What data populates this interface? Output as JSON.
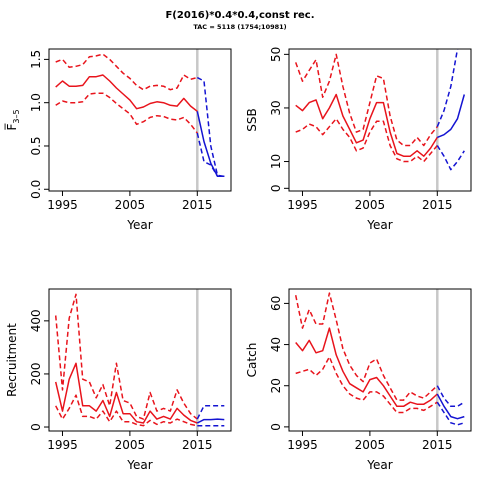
{
  "title": "F(2016)*0.4*0.4,const rec.",
  "subtitle": "TAC = 5118 (1754;10981)",
  "colors": {
    "historic": "#e8141c",
    "forecast": "#1414d2",
    "divider": "#c8c8c8"
  },
  "chart_data": [
    {
      "type": "line",
      "name": "fbar-panel",
      "xlabel": "Year",
      "ylabel": "F̅",
      "ylabel_sub": "3–5",
      "xlim": [
        1993,
        2020
      ],
      "ylim": [
        -0.02,
        1.62
      ],
      "xticks": [
        1995,
        2005,
        2015
      ],
      "yticks": [
        0.0,
        0.5,
        1.0,
        1.5
      ],
      "ytick_labels": [
        "0.0",
        "0.5",
        "1.0",
        "1.5"
      ],
      "divider_x": 2015,
      "historic": {
        "x": [
          1994,
          1995,
          1996,
          1997,
          1998,
          1999,
          2000,
          2001,
          2002,
          2003,
          2004,
          2005,
          2006,
          2007,
          2008,
          2009,
          2010,
          2011,
          2012,
          2013,
          2014,
          2015
        ],
        "mid": [
          1.18,
          1.25,
          1.19,
          1.19,
          1.2,
          1.3,
          1.3,
          1.32,
          1.25,
          1.17,
          1.1,
          1.03,
          0.93,
          0.95,
          0.99,
          1.01,
          1.0,
          0.97,
          0.96,
          1.05,
          0.96,
          0.9
        ],
        "low": [
          0.97,
          1.02,
          1.0,
          1.0,
          1.01,
          1.1,
          1.11,
          1.11,
          1.06,
          0.99,
          0.93,
          0.87,
          0.75,
          0.78,
          0.83,
          0.85,
          0.84,
          0.81,
          0.8,
          0.83,
          0.75,
          0.65
        ],
        "high": [
          1.47,
          1.5,
          1.41,
          1.42,
          1.44,
          1.53,
          1.54,
          1.56,
          1.5,
          1.42,
          1.34,
          1.28,
          1.2,
          1.15,
          1.19,
          1.2,
          1.19,
          1.15,
          1.17,
          1.32,
          1.27,
          1.29
        ]
      },
      "forecast": {
        "x": [
          2015,
          2016,
          2017,
          2018,
          2019
        ],
        "mid": [
          0.9,
          0.55,
          0.3,
          0.15,
          0.15
        ],
        "low": [
          0.65,
          0.32,
          0.28,
          0.15,
          0.15
        ],
        "high": [
          1.29,
          1.25,
          0.5,
          0.16,
          0.15
        ]
      }
    },
    {
      "type": "line",
      "name": "ssb-panel",
      "xlabel": "Year",
      "ylabel": "SSB",
      "xlim": [
        1993,
        2020
      ],
      "ylim": [
        -1,
        52
      ],
      "xticks": [
        1995,
        2005,
        2015
      ],
      "yticks": [
        0,
        10,
        30,
        50
      ],
      "ytick_labels": [
        "0",
        "10",
        "30",
        "50"
      ],
      "divider_x": 2015,
      "historic": {
        "x": [
          1994,
          1995,
          1996,
          1997,
          1998,
          1999,
          2000,
          2001,
          2002,
          2003,
          2004,
          2005,
          2006,
          2007,
          2008,
          2009,
          2010,
          2011,
          2012,
          2013,
          2014,
          2015
        ],
        "mid": [
          31,
          29,
          32,
          33,
          26,
          30,
          35,
          27,
          22,
          17,
          18,
          26,
          32,
          32,
          21,
          13,
          12,
          12,
          14,
          12,
          15,
          19
        ],
        "low": [
          21,
          22,
          24,
          23,
          20,
          23,
          26,
          22,
          19,
          14,
          15,
          21,
          25,
          25,
          16,
          11,
          10,
          10,
          12,
          10,
          13,
          16
        ],
        "high": [
          47,
          40,
          44,
          48,
          34,
          40,
          50,
          38,
          28,
          21,
          22,
          32,
          42,
          41,
          27,
          18,
          16,
          16,
          19,
          16,
          20,
          23
        ]
      },
      "forecast": {
        "x": [
          2015,
          2016,
          2017,
          2018,
          2019
        ],
        "mid": [
          19,
          20,
          22,
          26,
          35
        ],
        "low": [
          16,
          12,
          7,
          10,
          14
        ],
        "high": [
          23,
          29,
          38,
          52,
          56
        ]
      }
    },
    {
      "type": "line",
      "name": "recruitment-panel",
      "xlabel": "Year",
      "ylabel": "Recruitment",
      "xlim": [
        1993,
        2020
      ],
      "ylim": [
        -15,
        520
      ],
      "xticks": [
        1995,
        2005,
        2015
      ],
      "yticks": [
        0,
        200,
        400
      ],
      "ytick_labels": [
        "0",
        "200",
        "400"
      ],
      "divider_x": 2015,
      "historic": {
        "x": [
          1994,
          1995,
          1996,
          1997,
          1998,
          1999,
          2000,
          2001,
          2002,
          2003,
          2004,
          2005,
          2006,
          2007,
          2008,
          2009,
          2010,
          2011,
          2012,
          2013,
          2014,
          2015
        ],
        "mid": [
          170,
          60,
          180,
          240,
          80,
          80,
          60,
          100,
          40,
          130,
          50,
          50,
          20,
          15,
          60,
          30,
          40,
          30,
          70,
          45,
          25,
          15
        ],
        "low": [
          80,
          30,
          70,
          120,
          40,
          40,
          30,
          60,
          20,
          60,
          20,
          20,
          10,
          5,
          25,
          10,
          20,
          15,
          30,
          20,
          10,
          5
        ],
        "high": [
          420,
          140,
          410,
          500,
          180,
          170,
          110,
          160,
          80,
          240,
          100,
          90,
          40,
          30,
          130,
          60,
          70,
          60,
          140,
          90,
          50,
          30
        ]
      },
      "forecast": {
        "x": [
          2015,
          2016,
          2017,
          2018,
          2019
        ],
        "mid": [
          15,
          28,
          28,
          30,
          28
        ],
        "low": [
          5,
          5,
          5,
          5,
          5
        ],
        "high": [
          30,
          80,
          80,
          80,
          80
        ]
      }
    },
    {
      "type": "line",
      "name": "catch-panel",
      "xlabel": "Year",
      "ylabel": "Catch",
      "xlim": [
        1993,
        2020
      ],
      "ylim": [
        -2,
        67
      ],
      "xticks": [
        1995,
        2005,
        2015
      ],
      "yticks": [
        0,
        20,
        40,
        60
      ],
      "ytick_labels": [
        "0",
        "20",
        "40",
        "60"
      ],
      "divider_x": 2015,
      "historic": {
        "x": [
          1994,
          1995,
          1996,
          1997,
          1998,
          1999,
          2000,
          2001,
          2002,
          2003,
          2004,
          2005,
          2006,
          2007,
          2008,
          2009,
          2010,
          2011,
          2012,
          2013,
          2014,
          2015
        ],
        "mid": [
          41,
          37,
          42,
          36,
          37,
          48,
          35,
          27,
          21,
          19,
          17,
          23,
          24,
          20,
          15,
          10,
          10,
          12,
          11,
          11,
          13,
          16
        ],
        "low": [
          26,
          27,
          28,
          25,
          28,
          34,
          26,
          20,
          16,
          14,
          13,
          17,
          17,
          15,
          11,
          7,
          7,
          9,
          9,
          8,
          10,
          12
        ],
        "high": [
          64,
          48,
          57,
          50,
          50,
          65,
          52,
          38,
          30,
          25,
          22,
          31,
          33,
          25,
          19,
          13,
          13,
          17,
          15,
          14,
          17,
          20
        ]
      },
      "forecast": {
        "x": [
          2015,
          2016,
          2017,
          2018,
          2019
        ],
        "mid": [
          16,
          10,
          5,
          4,
          5
        ],
        "low": [
          12,
          7,
          2,
          1,
          2
        ],
        "high": [
          20,
          14,
          10,
          10,
          12
        ]
      }
    }
  ]
}
